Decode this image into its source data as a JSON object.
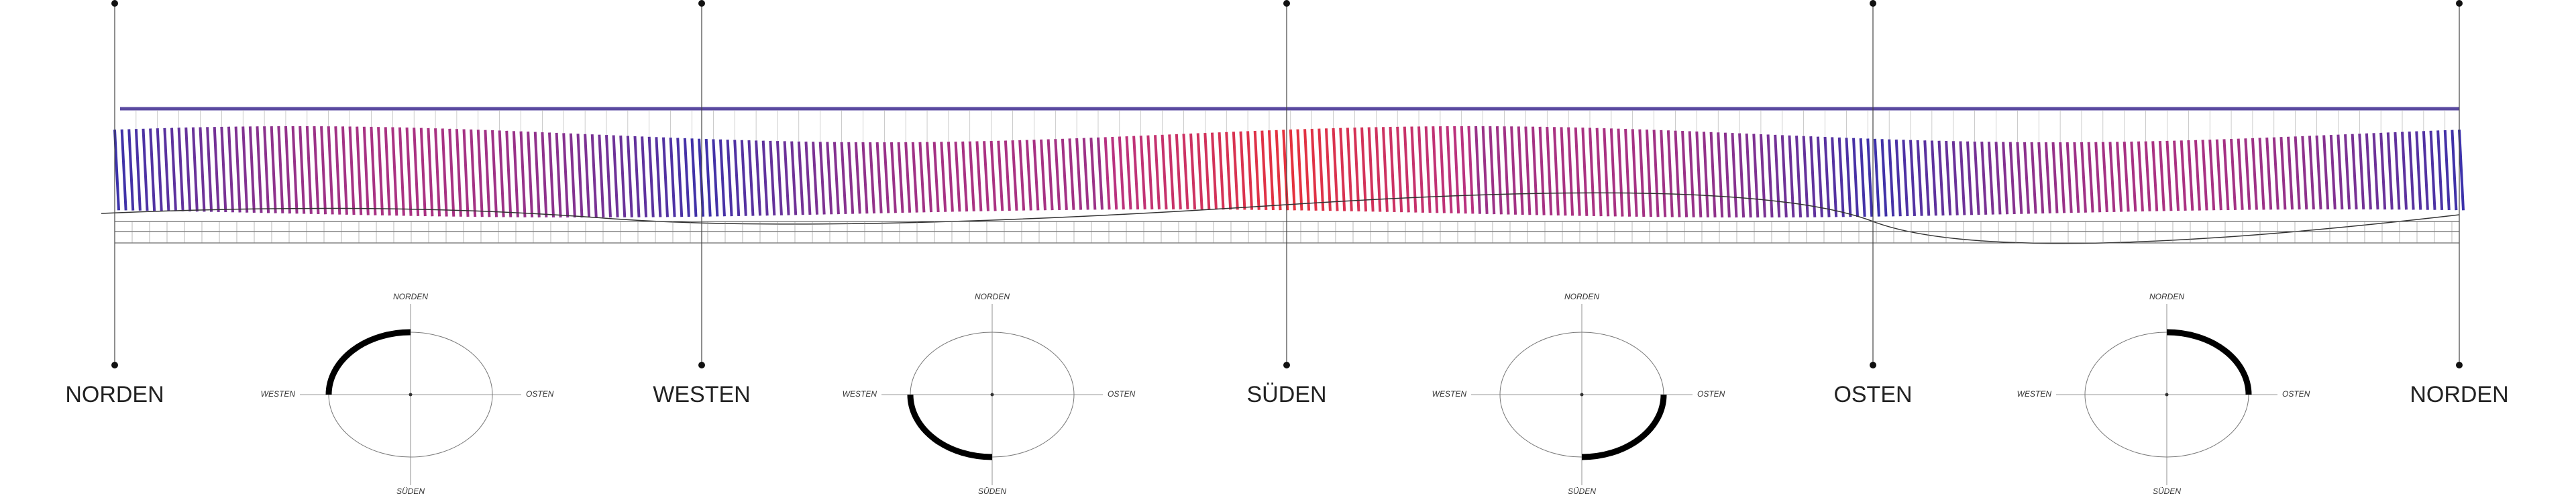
{
  "directions": [
    "NORDEN",
    "WESTEN",
    "SÜDEN",
    "OSTEN",
    "NORDEN"
  ],
  "compasses": [
    {
      "north": "NORDEN",
      "west": "WESTEN",
      "east": "OSTEN",
      "south": "SÜDEN"
    },
    {
      "north": "NORDEN",
      "west": "WESTEN",
      "east": "OSTEN",
      "south": "SÜDEN"
    },
    {
      "north": "NORDEN",
      "west": "WESTEN",
      "east": "OSTEN",
      "south": "SÜDEN"
    },
    {
      "north": "NORDEN",
      "west": "WESTEN",
      "east": "OSTEN",
      "south": "SÜDEN"
    }
  ]
}
